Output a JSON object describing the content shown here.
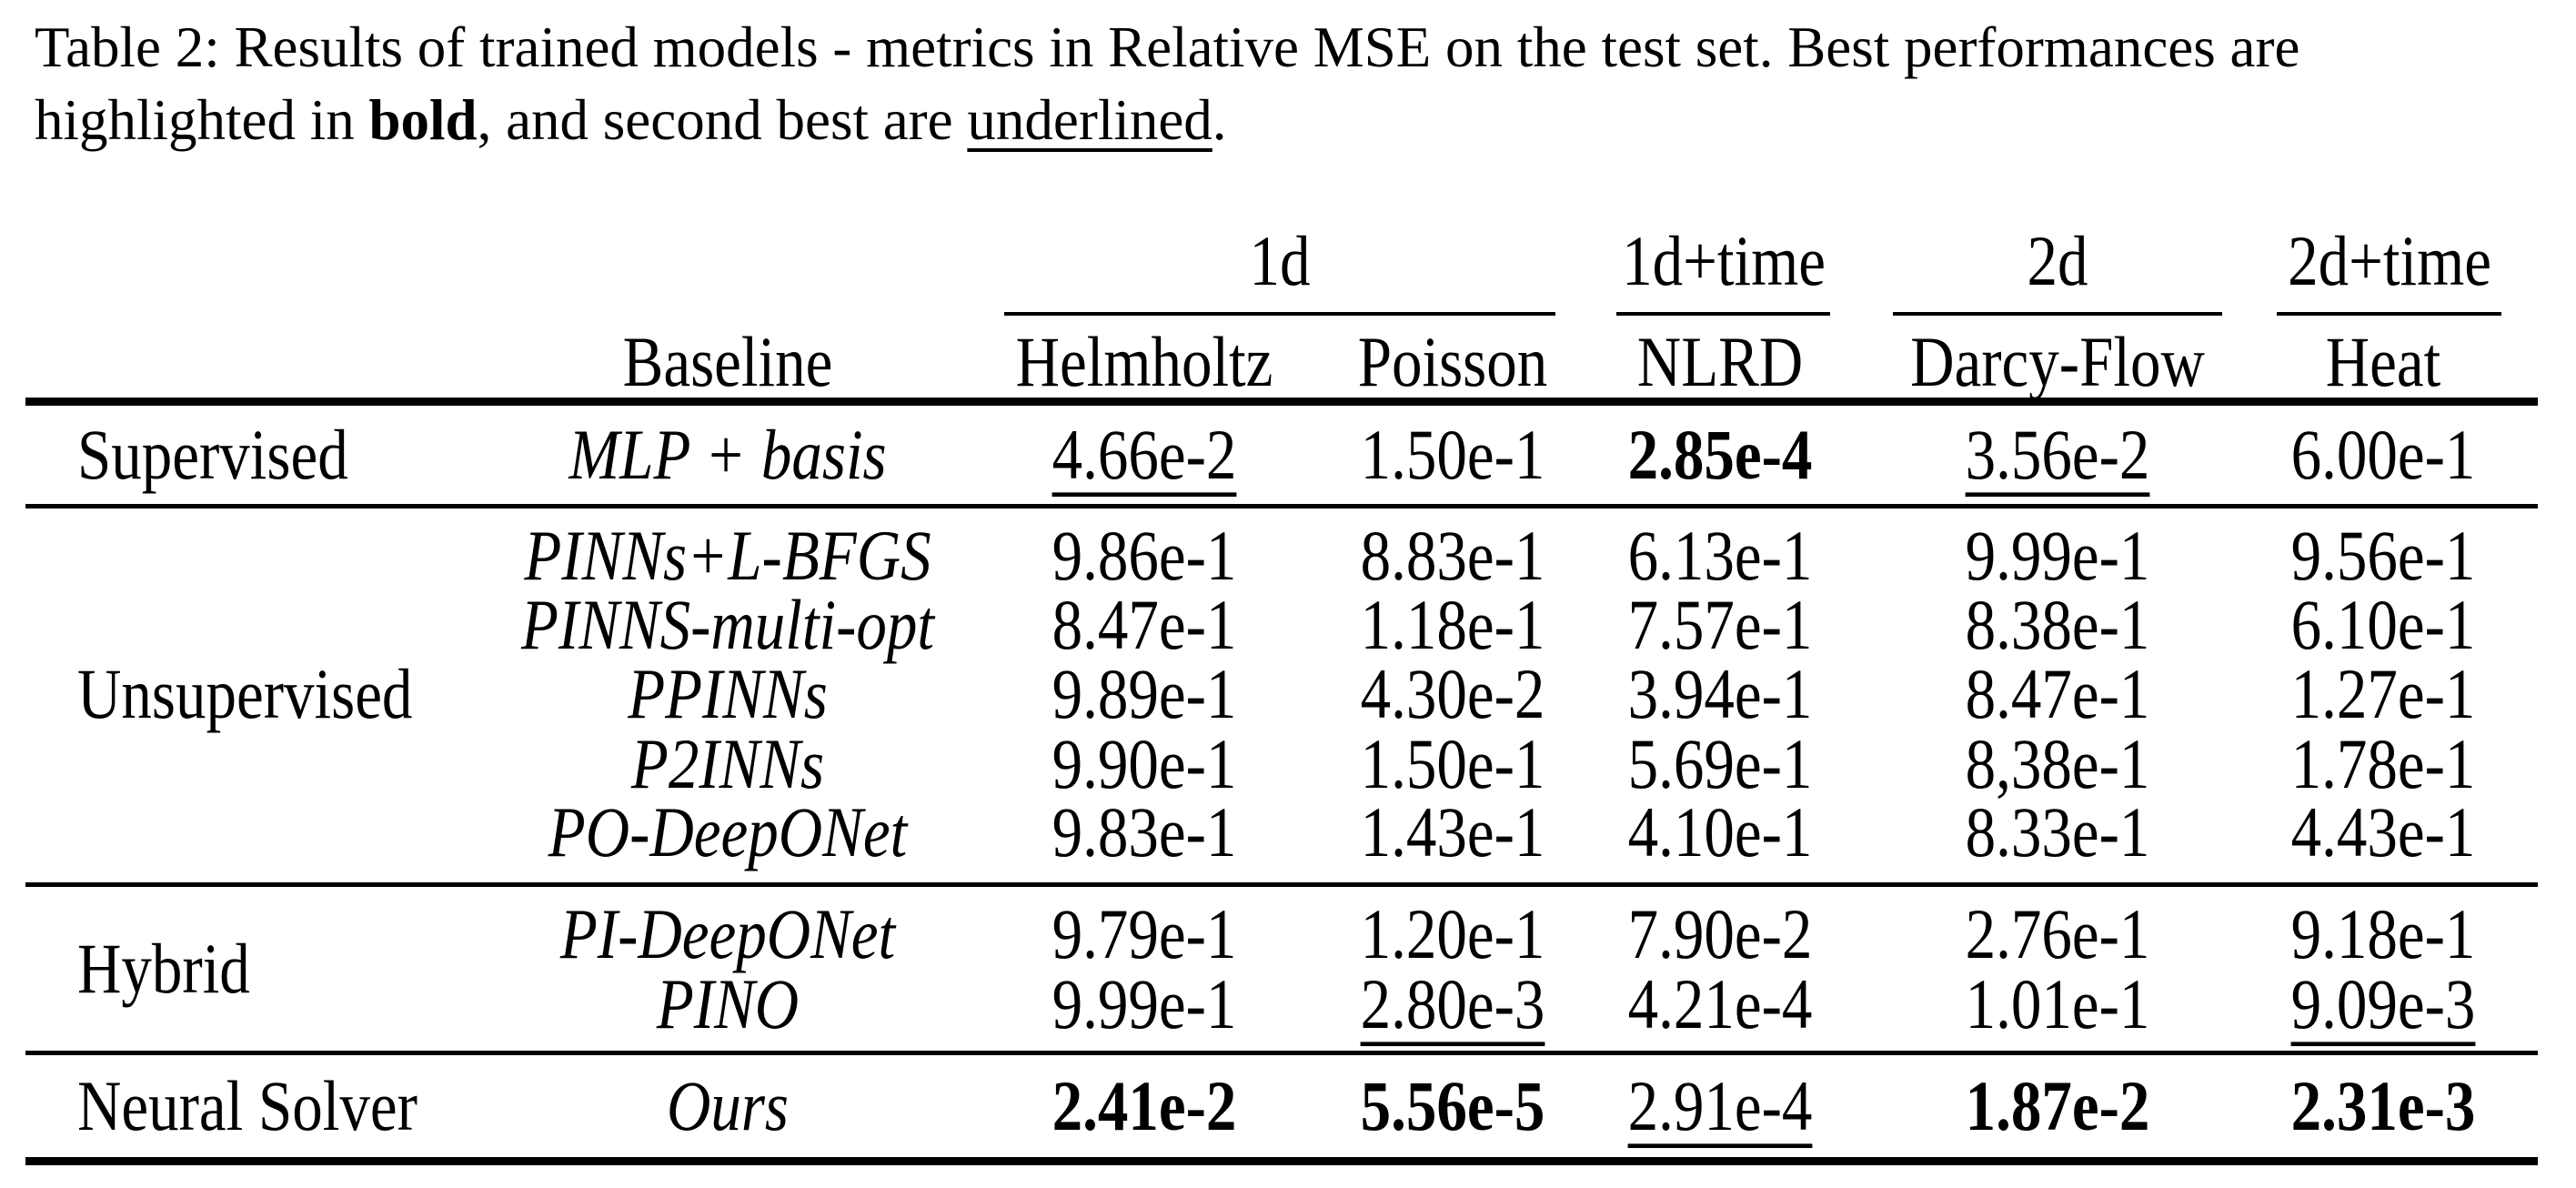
{
  "caption": {
    "segments": [
      {
        "text": "Table 2: Results of trained models - metrics in Relative MSE on the test set. Best performances are highlighted in ",
        "style": "normal"
      },
      {
        "text": "bold",
        "style": "bold"
      },
      {
        "text": ", and second best are ",
        "style": "normal"
      },
      {
        "text": "underlined",
        "style": "underline"
      },
      {
        "text": ".",
        "style": "normal"
      }
    ]
  },
  "table": {
    "group_headers": [
      {
        "label": "1d"
      },
      {
        "label": "1d+time"
      },
      {
        "label": "2d"
      },
      {
        "label": "2d+time"
      }
    ],
    "column_headers": {
      "baseline": "Baseline",
      "metrics": [
        "Helmholtz",
        "Poisson",
        "NLRD",
        "Darcy-Flow",
        "Heat"
      ]
    },
    "sections": [
      {
        "category": "Supervised",
        "rows": [
          {
            "baseline": "MLP + basis",
            "values": [
              {
                "text": "4.66e-2",
                "style": "underline"
              },
              {
                "text": "1.50e-1",
                "style": "normal"
              },
              {
                "text": "2.85e-4",
                "style": "bold"
              },
              {
                "text": "3.56e-2",
                "style": "underline"
              },
              {
                "text": "6.00e-1",
                "style": "normal"
              }
            ]
          }
        ]
      },
      {
        "category": "Unsupervised",
        "rows": [
          {
            "baseline": "PINNs+L-BFGS",
            "values": [
              {
                "text": "9.86e-1",
                "style": "normal"
              },
              {
                "text": "8.83e-1",
                "style": "normal"
              },
              {
                "text": "6.13e-1",
                "style": "normal"
              },
              {
                "text": "9.99e-1",
                "style": "normal"
              },
              {
                "text": "9.56e-1",
                "style": "normal"
              }
            ]
          },
          {
            "baseline": "PINNS-multi-opt",
            "values": [
              {
                "text": "8.47e-1",
                "style": "normal"
              },
              {
                "text": "1.18e-1",
                "style": "normal"
              },
              {
                "text": "7.57e-1",
                "style": "normal"
              },
              {
                "text": "8.38e-1",
                "style": "normal"
              },
              {
                "text": "6.10e-1",
                "style": "normal"
              }
            ]
          },
          {
            "baseline": "PPINNs",
            "values": [
              {
                "text": "9.89e-1",
                "style": "normal"
              },
              {
                "text": "4.30e-2",
                "style": "normal"
              },
              {
                "text": "3.94e-1",
                "style": "normal"
              },
              {
                "text": "8.47e-1",
                "style": "normal"
              },
              {
                "text": "1.27e-1",
                "style": "normal"
              }
            ]
          },
          {
            "baseline": "P2INNs",
            "values": [
              {
                "text": "9.90e-1",
                "style": "normal"
              },
              {
                "text": "1.50e-1",
                "style": "normal"
              },
              {
                "text": "5.69e-1",
                "style": "normal"
              },
              {
                "text": "8,38e-1",
                "style": "normal"
              },
              {
                "text": "1.78e-1",
                "style": "normal"
              }
            ]
          },
          {
            "baseline": "PO-DeepONet",
            "values": [
              {
                "text": "9.83e-1",
                "style": "normal"
              },
              {
                "text": "1.43e-1",
                "style": "normal"
              },
              {
                "text": "4.10e-1",
                "style": "normal"
              },
              {
                "text": "8.33e-1",
                "style": "normal"
              },
              {
                "text": "4.43e-1",
                "style": "normal"
              }
            ]
          }
        ]
      },
      {
        "category": "Hybrid",
        "rows": [
          {
            "baseline": "PI-DeepONet",
            "values": [
              {
                "text": "9.79e-1",
                "style": "normal"
              },
              {
                "text": "1.20e-1",
                "style": "normal"
              },
              {
                "text": "7.90e-2",
                "style": "normal"
              },
              {
                "text": "2.76e-1",
                "style": "normal"
              },
              {
                "text": "9.18e-1",
                "style": "normal"
              }
            ]
          },
          {
            "baseline": "PINO",
            "values": [
              {
                "text": "9.99e-1",
                "style": "normal"
              },
              {
                "text": "2.80e-3",
                "style": "underline"
              },
              {
                "text": "4.21e-4",
                "style": "normal"
              },
              {
                "text": "1.01e-1",
                "style": "normal"
              },
              {
                "text": "9.09e-3",
                "style": "underline"
              }
            ]
          }
        ]
      },
      {
        "category": "Neural Solver",
        "rows": [
          {
            "baseline": "Ours",
            "values": [
              {
                "text": "2.41e-2",
                "style": "bold"
              },
              {
                "text": "5.56e-5",
                "style": "bold"
              },
              {
                "text": "2.91e-4",
                "style": "underline"
              },
              {
                "text": "1.87e-2",
                "style": "bold"
              },
              {
                "text": "2.31e-3",
                "style": "bold"
              }
            ]
          }
        ]
      }
    ]
  }
}
